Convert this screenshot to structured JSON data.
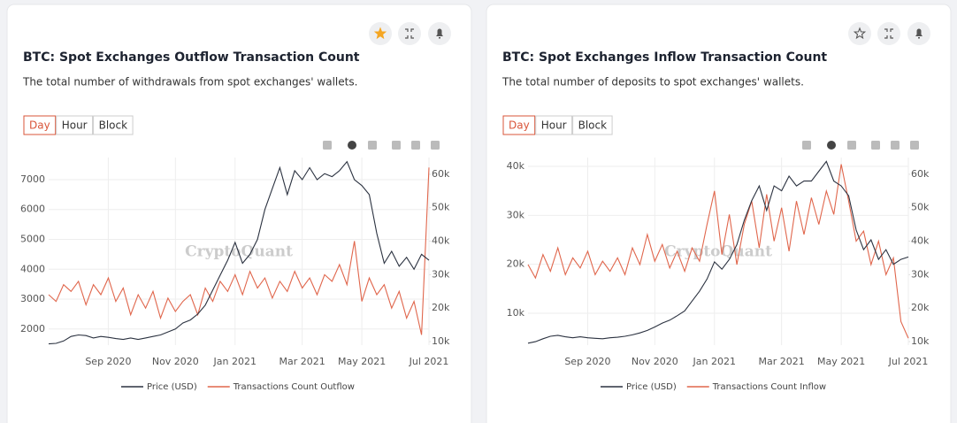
{
  "chart_data": [
    {
      "type": "line",
      "title": "BTC: Spot Exchanges Outflow Transaction Count",
      "subtitle": "The total number of withdrawals from spot exchanges' wallets.",
      "tabs": [
        "Day",
        "Hour",
        "Block"
      ],
      "watermark": "CryptoQuant",
      "categories": [
        null,
        null,
        null,
        null,
        null,
        null,
        null,
        null,
        "Sep 2020",
        null,
        null,
        null,
        null,
        null,
        null,
        null,
        null,
        "Nov 2020",
        null,
        null,
        null,
        null,
        null,
        null,
        null,
        "Jan 2021",
        null,
        null,
        null,
        null,
        null,
        null,
        null,
        null,
        "Mar 2021",
        null,
        null,
        null,
        null,
        null,
        null,
        null,
        "May 2021",
        null,
        null,
        null,
        null,
        null,
        null,
        null,
        null,
        "Jul 2021"
      ],
      "series": [
        {
          "name": "Price (USD)",
          "color": "#2b3240",
          "values": [
            1500,
            1520,
            1600,
            1750,
            1800,
            1780,
            1700,
            1750,
            1720,
            1680,
            1650,
            1700,
            1650,
            1700,
            1750,
            1800,
            1900,
            2000,
            2200,
            2300,
            2500,
            2800,
            3300,
            3800,
            4300,
            4900,
            4200,
            4500,
            5000,
            6000,
            6700,
            7400,
            6500,
            7300,
            7000,
            7400,
            7000,
            7200,
            7100,
            7300,
            7600,
            7000,
            6800,
            6500,
            5200,
            4200,
            4600,
            4100,
            4400,
            4000,
            4500,
            4300
          ]
        },
        {
          "name": "Transactions Count Outflow",
          "color": "#e0664c",
          "axis": "y2",
          "values": [
            24000,
            22000,
            27000,
            25000,
            28000,
            21000,
            27000,
            24000,
            29000,
            22000,
            26000,
            18000,
            24000,
            20000,
            25000,
            17000,
            23000,
            19000,
            22000,
            24000,
            18000,
            26000,
            22000,
            28000,
            25000,
            30000,
            24000,
            31000,
            26000,
            29000,
            23000,
            28000,
            25000,
            31000,
            26000,
            29000,
            24000,
            30000,
            28000,
            33000,
            27000,
            40000,
            22000,
            29000,
            24000,
            27000,
            20000,
            25000,
            17000,
            22000,
            12000,
            62000
          ]
        }
      ],
      "ylim": [
        1460,
        7740
      ],
      "yticks": [
        2000,
        3000,
        4000,
        5000,
        6000,
        7000
      ],
      "y2lim": [
        8940,
        65000
      ],
      "y2ticks": [
        {
          "value": 10000,
          "label": "10k"
        },
        {
          "value": 20000,
          "label": "20k"
        },
        {
          "value": 30000,
          "label": "30k"
        },
        {
          "value": 40000,
          "label": "40k"
        },
        {
          "value": 50000,
          "label": "50k"
        },
        {
          "value": 60000,
          "label": "60k"
        }
      ],
      "grid": true,
      "favorite": true
    },
    {
      "type": "line",
      "title": "BTC: Spot Exchanges Inflow Transaction Count",
      "subtitle": "The total number of deposits to spot exchanges' wallets.",
      "tabs": [
        "Day",
        "Hour",
        "Block"
      ],
      "watermark": "CryptoQuant",
      "categories": [
        null,
        null,
        null,
        null,
        null,
        null,
        null,
        null,
        "Sep 2020",
        null,
        null,
        null,
        null,
        null,
        null,
        null,
        null,
        "Nov 2020",
        null,
        null,
        null,
        null,
        null,
        null,
        null,
        "Jan 2021",
        null,
        null,
        null,
        null,
        null,
        null,
        null,
        null,
        "Mar 2021",
        null,
        null,
        null,
        null,
        null,
        null,
        null,
        "May 2021",
        null,
        null,
        null,
        null,
        null,
        null,
        null,
        null,
        "Jul 2021"
      ],
      "series": [
        {
          "name": "Price (USD)",
          "color": "#2b3240",
          "values": [
            3900,
            4200,
            4800,
            5300,
            5500,
            5200,
            5000,
            5200,
            5000,
            4900,
            4800,
            5000,
            5100,
            5300,
            5600,
            6000,
            6500,
            7200,
            8000,
            8600,
            9500,
            10500,
            12500,
            14500,
            17000,
            20500,
            19000,
            21000,
            24000,
            29000,
            33000,
            36000,
            31000,
            36000,
            35000,
            38000,
            36000,
            37000,
            37000,
            39000,
            41000,
            37000,
            36000,
            34000,
            27000,
            23000,
            25000,
            21000,
            23000,
            20000,
            21000,
            21500
          ]
        },
        {
          "name": "Transactions Count Inflow",
          "color": "#e0664c",
          "axis": "y2",
          "values": [
            33000,
            29000,
            36000,
            31000,
            38000,
            30000,
            35000,
            32000,
            37000,
            30000,
            34000,
            31000,
            35000,
            30000,
            38000,
            33000,
            42000,
            34000,
            39000,
            32000,
            37000,
            31000,
            38000,
            34000,
            45000,
            55000,
            36000,
            48000,
            33000,
            45000,
            52000,
            38000,
            54000,
            40000,
            50000,
            37000,
            52000,
            42000,
            53000,
            45000,
            55000,
            48000,
            63000,
            52000,
            40000,
            43000,
            33000,
            40000,
            30000,
            35000,
            16000,
            11000
          ]
        }
      ],
      "ylim": [
        3500,
        41800
      ],
      "yticks": [
        {
          "value": 10000,
          "label": "10k"
        },
        {
          "value": 20000,
          "label": "20k"
        },
        {
          "value": 30000,
          "label": "30k"
        },
        {
          "value": 40000,
          "label": "40k"
        }
      ],
      "y2lim": [
        8940,
        65000
      ],
      "y2ticks": [
        {
          "value": 10000,
          "label": "10k"
        },
        {
          "value": 20000,
          "label": "20k"
        },
        {
          "value": 30000,
          "label": "30k"
        },
        {
          "value": 40000,
          "label": "40k"
        },
        {
          "value": 50000,
          "label": "50k"
        },
        {
          "value": 60000,
          "label": "60k"
        }
      ],
      "grid": true,
      "favorite": false
    }
  ]
}
